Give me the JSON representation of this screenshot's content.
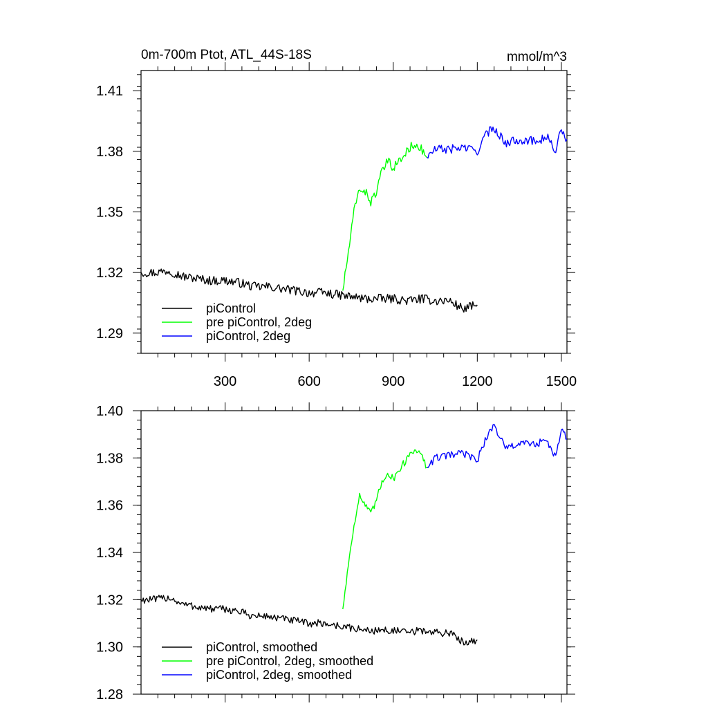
{
  "chart_data": [
    {
      "type": "line",
      "title": "0m-700m Ptot, ATL_44S-18S",
      "units": "mmol/m^3",
      "xlim": [
        0,
        1520
      ],
      "ylim": [
        1.28,
        1.42
      ],
      "x_ticks": [
        300,
        600,
        900,
        1200,
        1500
      ],
      "x_tick_labels": [
        "300",
        "600",
        "900",
        "1200",
        "1500"
      ],
      "y_ticks": [
        1.29,
        1.32,
        1.35,
        1.38,
        1.41
      ],
      "y_tick_labels": [
        "1.29",
        "1.32",
        "1.35",
        "1.38",
        "1.41"
      ],
      "legend": "bottom-left",
      "series": [
        {
          "name": "piControl",
          "color": "#000000",
          "x": [
            0,
            50,
            100,
            150,
            200,
            250,
            300,
            350,
            400,
            450,
            500,
            550,
            600,
            650,
            700,
            750,
            800,
            850,
            900,
            950,
            1000,
            1050,
            1100,
            1150,
            1200
          ],
          "y": [
            1.32,
            1.32,
            1.321,
            1.318,
            1.317,
            1.316,
            1.316,
            1.315,
            1.313,
            1.313,
            1.312,
            1.311,
            1.31,
            1.31,
            1.309,
            1.308,
            1.307,
            1.307,
            1.307,
            1.306,
            1.307,
            1.306,
            1.306,
            1.302,
            1.304
          ]
        },
        {
          "name": "pre piControl, 2deg",
          "color": "#00ff00",
          "x": [
            720,
            740,
            760,
            780,
            800,
            820,
            840,
            860,
            880,
            900,
            920,
            940,
            960,
            980,
            1000,
            1020
          ],
          "y": [
            1.311,
            1.33,
            1.35,
            1.362,
            1.36,
            1.355,
            1.36,
            1.37,
            1.375,
            1.372,
            1.375,
            1.378,
            1.382,
            1.384,
            1.381,
            1.377
          ]
        },
        {
          "name": "piControl, 2deg",
          "color": "#0000ff",
          "x": [
            1020,
            1050,
            1100,
            1150,
            1200,
            1230,
            1260,
            1300,
            1350,
            1400,
            1450,
            1480,
            1500,
            1520
          ],
          "y": [
            1.377,
            1.381,
            1.381,
            1.382,
            1.38,
            1.388,
            1.392,
            1.384,
            1.386,
            1.385,
            1.387,
            1.38,
            1.391,
            1.386
          ]
        }
      ]
    },
    {
      "type": "line",
      "title": "",
      "xlim": [
        0,
        1520
      ],
      "ylim": [
        1.28,
        1.4
      ],
      "x_ticks": [
        300,
        600,
        900,
        1200,
        1500
      ],
      "x_tick_labels": [],
      "y_ticks": [
        1.28,
        1.3,
        1.32,
        1.34,
        1.36,
        1.38,
        1.4
      ],
      "y_tick_labels": [
        "1.28",
        "1.30",
        "1.32",
        "1.34",
        "1.36",
        "1.38",
        "1.40"
      ],
      "legend": "bottom-left",
      "series": [
        {
          "name": "piControl, smoothed",
          "color": "#000000",
          "x": [
            0,
            50,
            100,
            150,
            200,
            250,
            300,
            350,
            400,
            450,
            500,
            550,
            600,
            650,
            700,
            750,
            800,
            850,
            900,
            950,
            1000,
            1050,
            1100,
            1150,
            1200
          ],
          "y": [
            1.32,
            1.32,
            1.321,
            1.318,
            1.317,
            1.316,
            1.316,
            1.315,
            1.313,
            1.313,
            1.312,
            1.311,
            1.31,
            1.31,
            1.309,
            1.308,
            1.307,
            1.307,
            1.307,
            1.306,
            1.307,
            1.306,
            1.306,
            1.302,
            1.303
          ]
        },
        {
          "name": "pre piControl, 2deg, smoothed",
          "color": "#00ff00",
          "x": [
            720,
            740,
            760,
            780,
            800,
            820,
            840,
            860,
            880,
            900,
            920,
            940,
            960,
            980,
            1000,
            1020
          ],
          "y": [
            1.316,
            1.335,
            1.352,
            1.364,
            1.36,
            1.356,
            1.362,
            1.37,
            1.374,
            1.371,
            1.375,
            1.378,
            1.382,
            1.384,
            1.381,
            1.376
          ]
        },
        {
          "name": "piControl, 2deg, smoothed",
          "color": "#0000ff",
          "x": [
            1020,
            1050,
            1100,
            1150,
            1200,
            1230,
            1260,
            1300,
            1350,
            1400,
            1450,
            1480,
            1500,
            1520
          ],
          "y": [
            1.376,
            1.38,
            1.381,
            1.382,
            1.379,
            1.388,
            1.394,
            1.384,
            1.386,
            1.386,
            1.387,
            1.38,
            1.392,
            1.388
          ]
        }
      ]
    }
  ]
}
